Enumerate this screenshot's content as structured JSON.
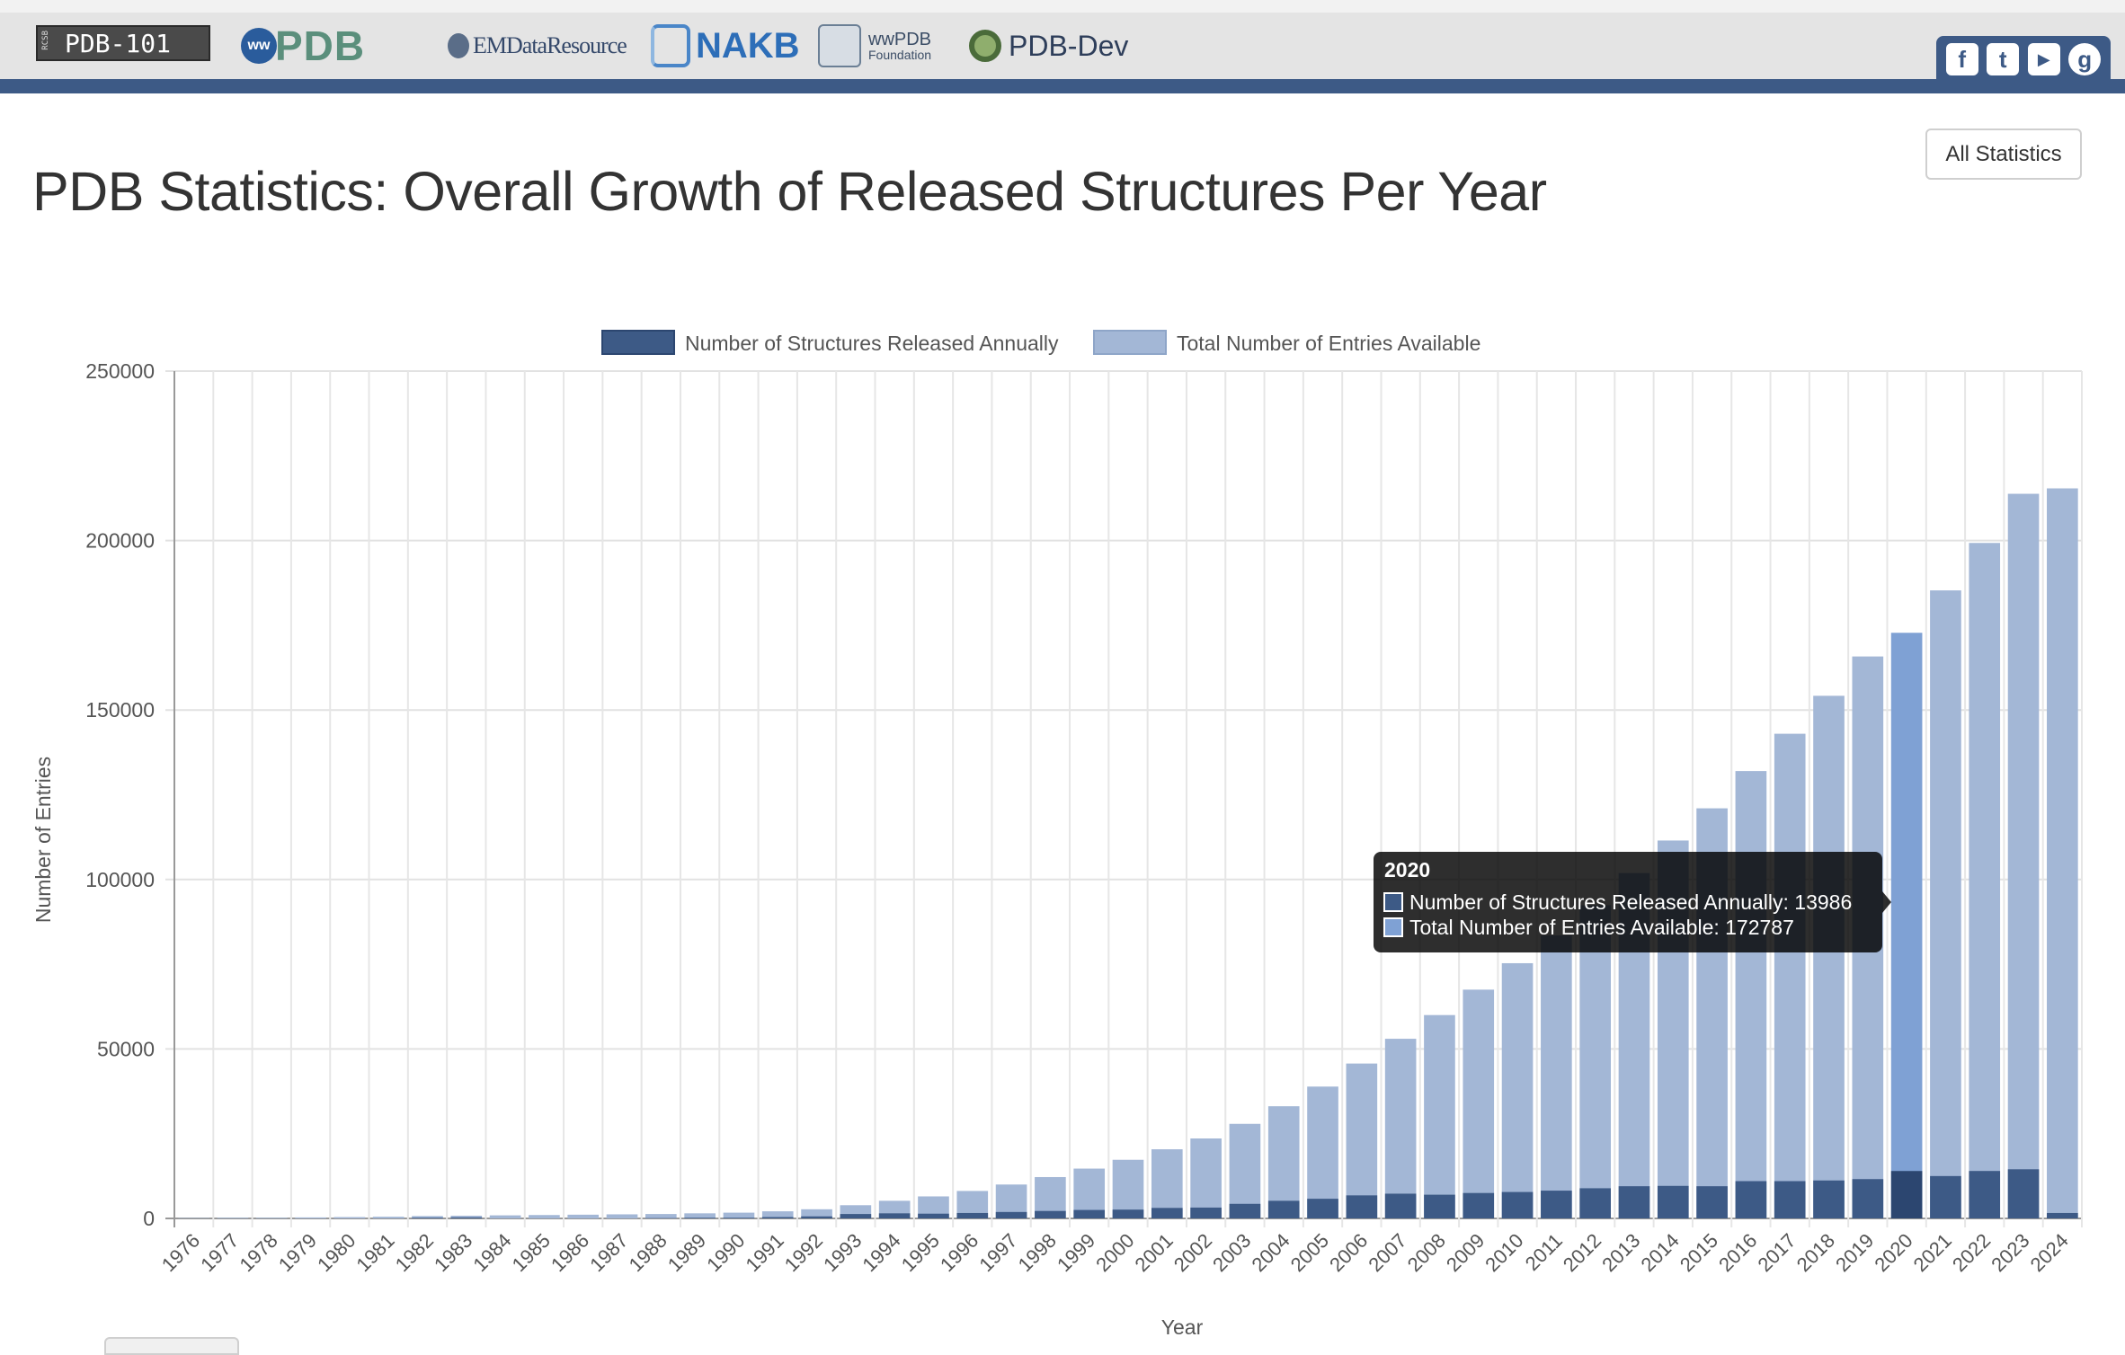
{
  "header": {
    "logos": {
      "pdb101": "PDB-101",
      "pdb101_sub": "RCSB",
      "wwpdb_ww": "ww",
      "wwpdb": "PDB",
      "emdb": "EMDataResource",
      "nakb": "NAKB",
      "wwpdb_foundation_1": "wwPDB",
      "wwpdb_foundation_2": "Foundation",
      "pdbdev": "PDB-Dev"
    },
    "social": {
      "facebook": "f",
      "twitter": "t",
      "youtube": "▶",
      "github": "g"
    }
  },
  "page": {
    "title": "PDB Statistics: Overall Growth of Released Structures Per Year",
    "all_statistics_label": "All Statistics"
  },
  "colors": {
    "annual": "#3d5a86",
    "total": "#a3b7d6",
    "annual_highlight": "#2c4670",
    "total_highlight": "#7fa1d4",
    "tooltip_bg": "#000000"
  },
  "chart_data": {
    "type": "bar",
    "xlabel": "Year",
    "ylabel": "Number of Entries",
    "ylim": [
      0,
      250000
    ],
    "yticks": [
      0,
      50000,
      100000,
      150000,
      200000,
      250000
    ],
    "grid": true,
    "legend_position": "top",
    "categories": [
      "1976",
      "1977",
      "1978",
      "1979",
      "1980",
      "1981",
      "1982",
      "1983",
      "1984",
      "1985",
      "1986",
      "1987",
      "1988",
      "1989",
      "1990",
      "1991",
      "1992",
      "1993",
      "1994",
      "1995",
      "1996",
      "1997",
      "1998",
      "1999",
      "2000",
      "2001",
      "2002",
      "2003",
      "2004",
      "2005",
      "2006",
      "2007",
      "2008",
      "2009",
      "2010",
      "2011",
      "2012",
      "2013",
      "2014",
      "2015",
      "2016",
      "2017",
      "2018",
      "2019",
      "2020",
      "2021",
      "2022",
      "2023",
      "2024"
    ],
    "series": [
      {
        "name": "Number of Structures Released Annually",
        "values": [
          0,
          0,
          0,
          0,
          0,
          0,
          200,
          300,
          0,
          0,
          0,
          0,
          100,
          200,
          200,
          400,
          600,
          1300,
          1500,
          1400,
          1600,
          1900,
          2200,
          2500,
          2600,
          3100,
          3200,
          4300,
          5200,
          5800,
          6800,
          7300,
          7000,
          7500,
          7800,
          8200,
          8900,
          9500,
          9600,
          9500,
          11000,
          11000,
          11200,
          11600,
          13986,
          12500,
          14000,
          14500,
          1600
        ]
      },
      {
        "name": "Total Number of Entries Available",
        "values": [
          100,
          200,
          200,
          300,
          400,
          500,
          700,
          800,
          900,
          1000,
          1100,
          1200,
          1300,
          1500,
          1700,
          2100,
          2700,
          3900,
          5200,
          6500,
          8100,
          10000,
          12200,
          14700,
          17300,
          20400,
          23600,
          27900,
          33100,
          38900,
          45700,
          53000,
          60000,
          67500,
          75300,
          83500,
          92400,
          101900,
          111500,
          121000,
          132000,
          143000,
          154200,
          165800,
          172787,
          185300,
          199300,
          213800,
          215400
        ]
      }
    ],
    "tooltip": {
      "title": "2020",
      "line1": "Number of Structures Released Annually: 13986",
      "line2": "Total Number of Entries Available: 172787",
      "category": "2020"
    }
  }
}
